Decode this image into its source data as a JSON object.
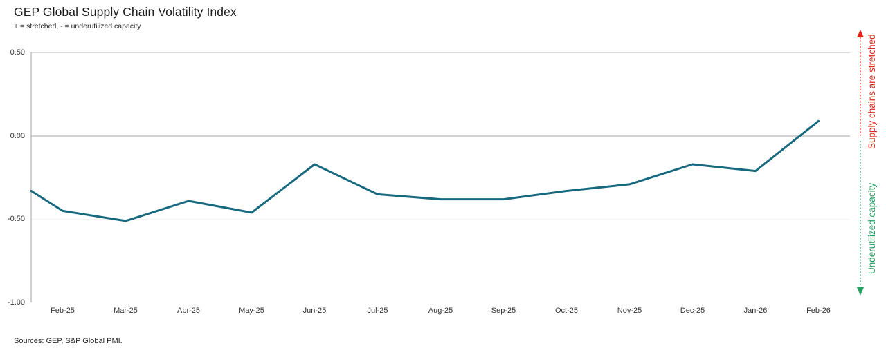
{
  "title": "GEP Global Supply Chain Volatility Index",
  "subtitle": "+ = stretched, - = underutilized capacity",
  "source_note": "Sources: GEP, S&P Global PMI.",
  "annotations": {
    "top": {
      "label": "Supply chains are stretched",
      "color": "#e1251b",
      "direction": "up"
    },
    "bottom": {
      "label": "Underutilized capacity",
      "color": "#27a163",
      "direction": "down"
    }
  },
  "chart_data": {
    "type": "line",
    "title": "GEP Global Supply Chain Volatility Index",
    "subtitle": "+ = stretched, - = underutilized capacity",
    "categories": [
      "Feb-25",
      "Mar-25",
      "Apr-25",
      "May-25",
      "Jun-25",
      "Jul-25",
      "Aug-25",
      "Sep-25",
      "Oct-25",
      "Nov-25",
      "Dec-25",
      "Jan-26",
      "Feb-26"
    ],
    "values": [
      -0.45,
      -0.51,
      -0.39,
      -0.46,
      -0.17,
      -0.35,
      -0.38,
      -0.38,
      -0.33,
      -0.29,
      -0.17,
      -0.21,
      0.09
    ],
    "edge_start_value": -0.33,
    "y_tick_labels": [
      "0.50",
      "0.00",
      "-0.50",
      "-1.00"
    ],
    "y_ticks": [
      0.5,
      0.0,
      -0.5,
      -1.0
    ],
    "ylim": [
      -1.0,
      0.5
    ],
    "line_color": "#16697e",
    "zero_line_color": "#a6a6a6",
    "legend": "none",
    "grid": "horizontal-faint"
  }
}
